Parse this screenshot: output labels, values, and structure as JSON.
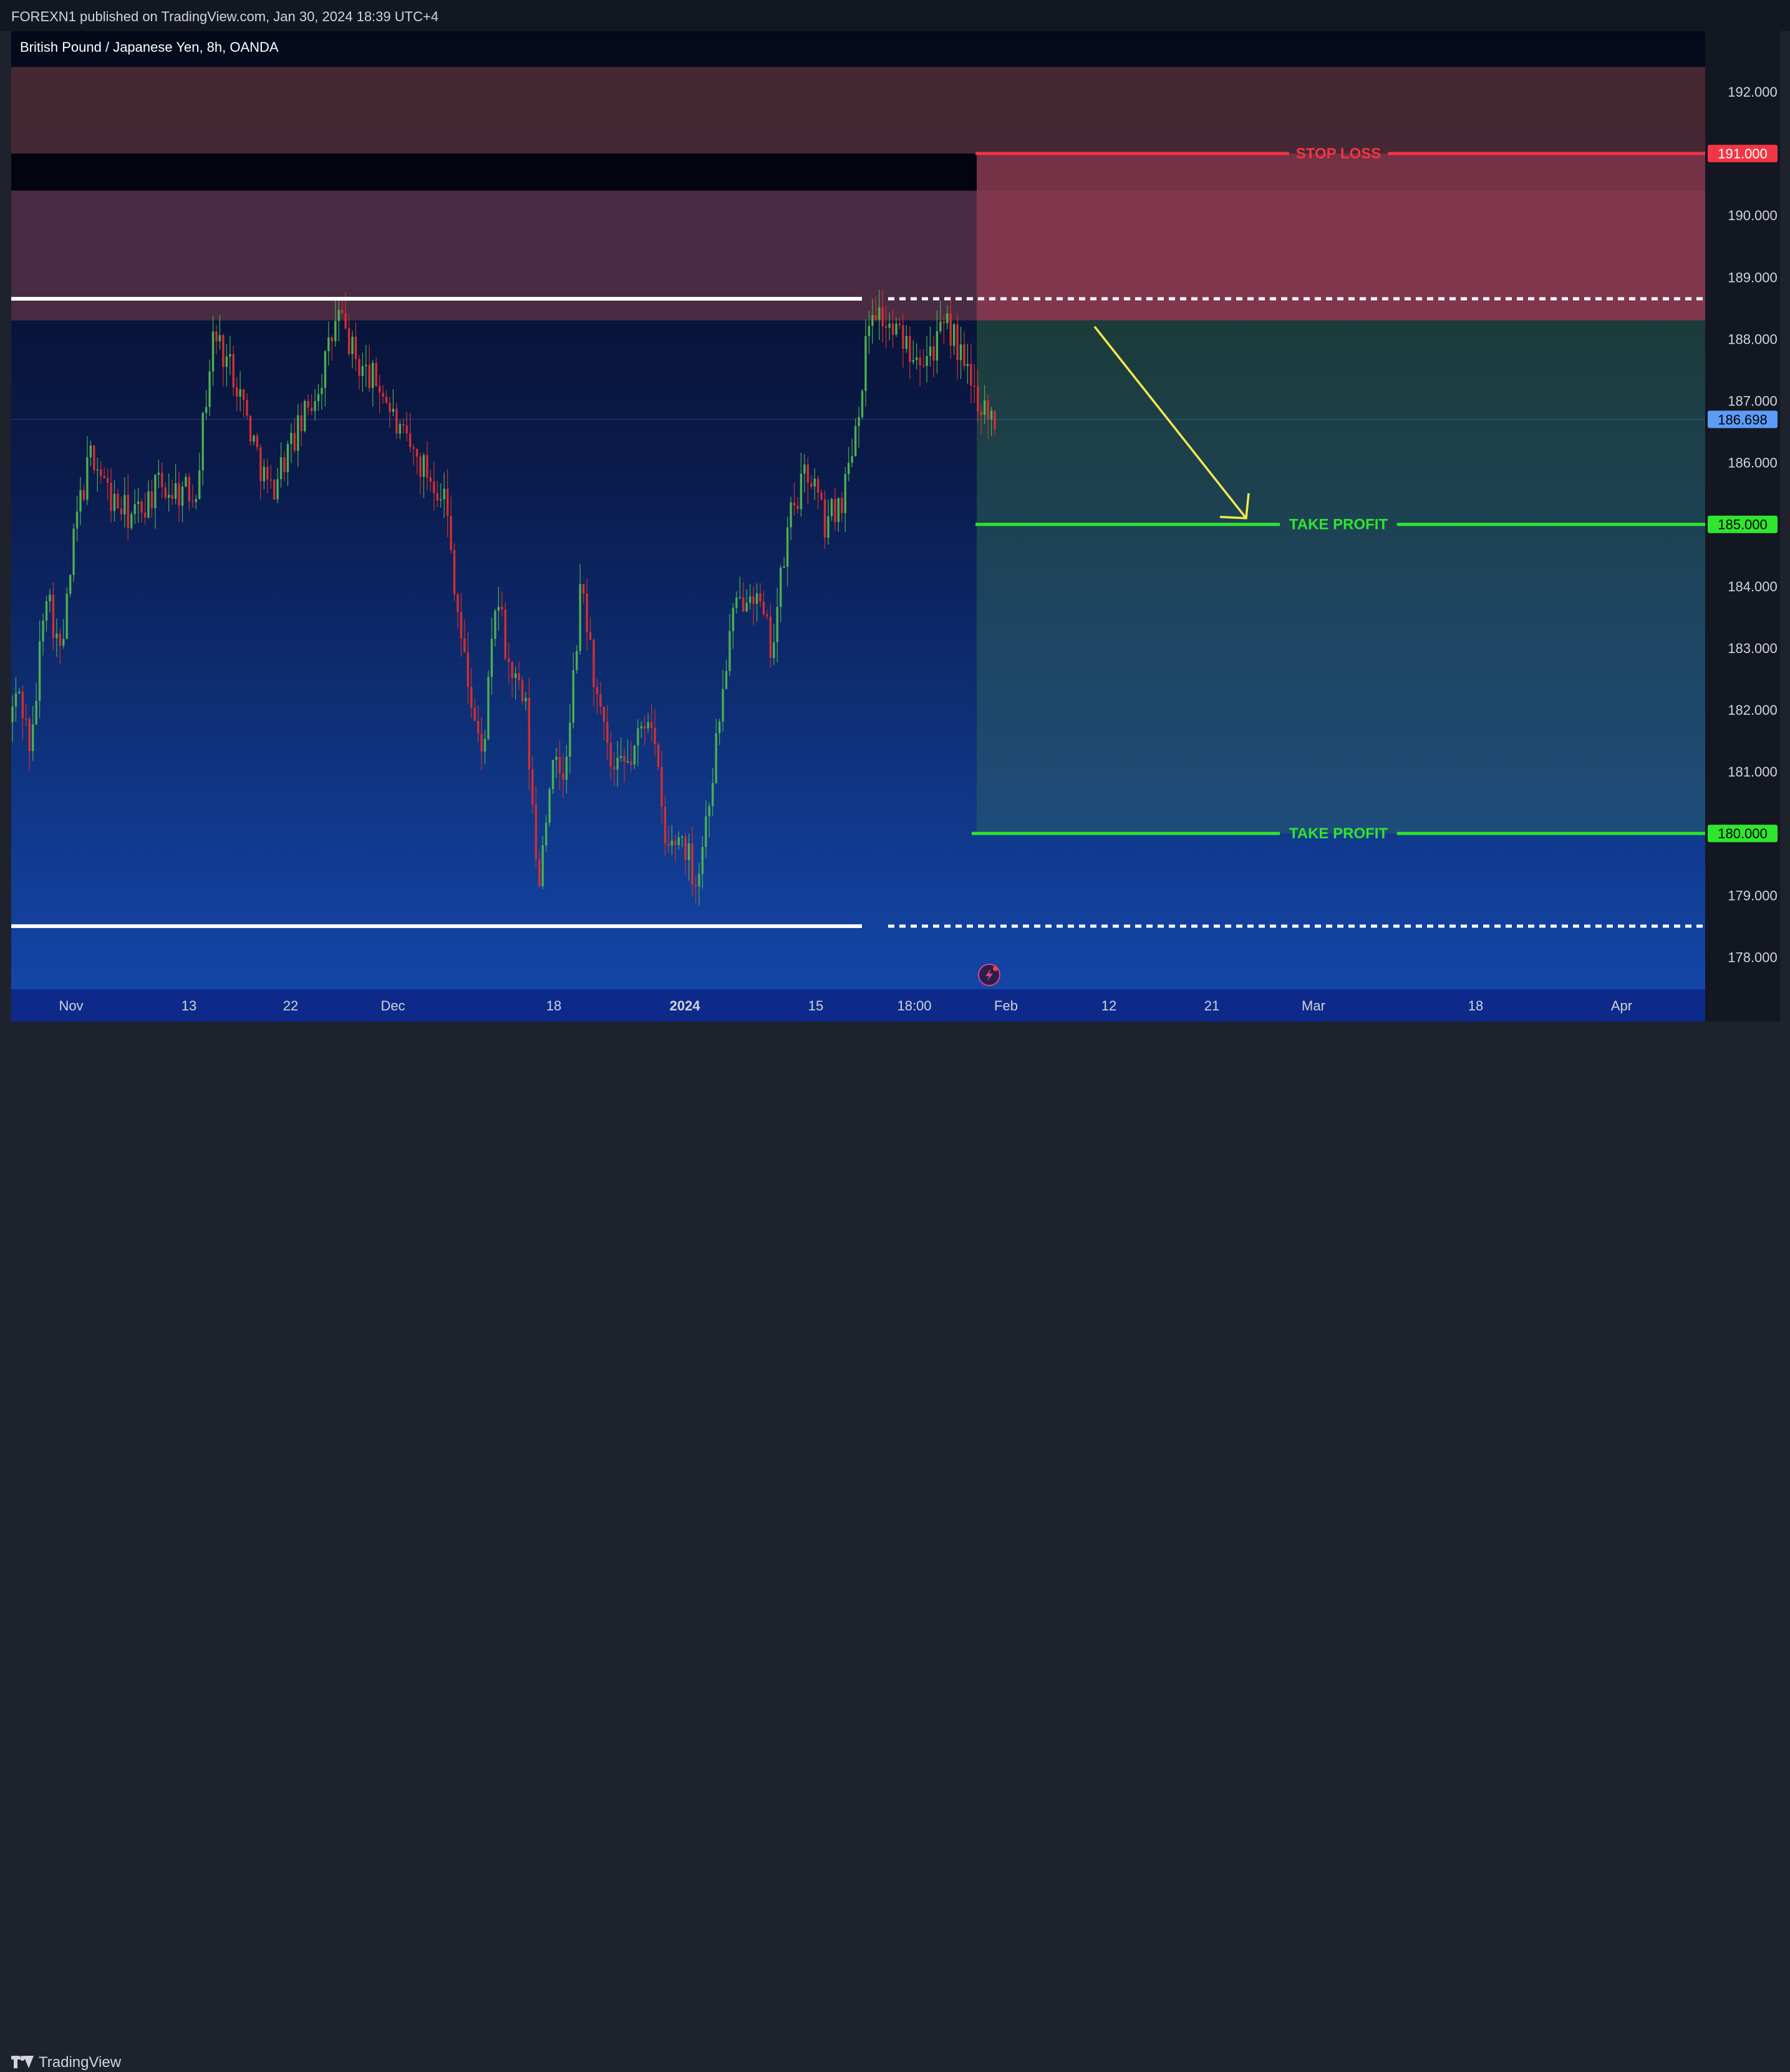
{
  "header": {
    "published": "FOREXN1 published on TradingView.com, Jan 30, 2024 18:39 UTC+4"
  },
  "footer": {
    "brand": "TradingView"
  },
  "chart_data": {
    "type": "candlestick",
    "title": "British Pound / Japanese Yen, 8h, OANDA",
    "symbol": "GBPJPY",
    "interval": "8h",
    "broker": "OANDA",
    "last_price": 186.698,
    "ylim": [
      177.4,
      192.5
    ],
    "y_ticks": [
      192.0,
      191.0,
      190.0,
      189.0,
      188.0,
      187.0,
      186.0,
      185.0,
      184.0,
      183.0,
      182.0,
      181.0,
      180.0,
      179.0,
      178.0
    ],
    "x_ticks": [
      "Nov",
      "13",
      "22",
      "Dec",
      "18",
      "2024",
      "15",
      "18:00",
      "Feb",
      "12",
      "21",
      "Mar",
      "18",
      "Apr"
    ],
    "bold_x_ticks": [
      "2024"
    ],
    "zones": [
      {
        "type": "supply-zone",
        "from": 191.0,
        "to": 192.4,
        "color": "#4a2a35"
      },
      {
        "type": "supply-zone",
        "from": 188.3,
        "to": 190.4,
        "color": "#4d2c45"
      }
    ],
    "levels": [
      {
        "type": "stop-loss",
        "label": "STOP LOSS",
        "price": 191.0,
        "price_label": "191.000",
        "color": "#f23645"
      },
      {
        "type": "take-profit",
        "label": "TAKE PROFIT",
        "price": 185.0,
        "price_label": "185.000",
        "color": "#2ee62e"
      },
      {
        "type": "take-profit",
        "label": "TAKE PROFIT",
        "price": 180.0,
        "price_label": "180.000",
        "color": "#2ee62e"
      }
    ],
    "range_lines": [
      {
        "type": "resistance",
        "price": 188.65
      },
      {
        "type": "support",
        "price": 178.5
      }
    ],
    "last_price_label": "186.698",
    "colors": {
      "up": "#4caf50",
      "down": "#d32f2f",
      "stop_zone": "#8a3a4f",
      "profit_zone": "#1e4a4a",
      "arrow": "#f5e94a",
      "last_price": "#5b9cf6"
    }
  }
}
